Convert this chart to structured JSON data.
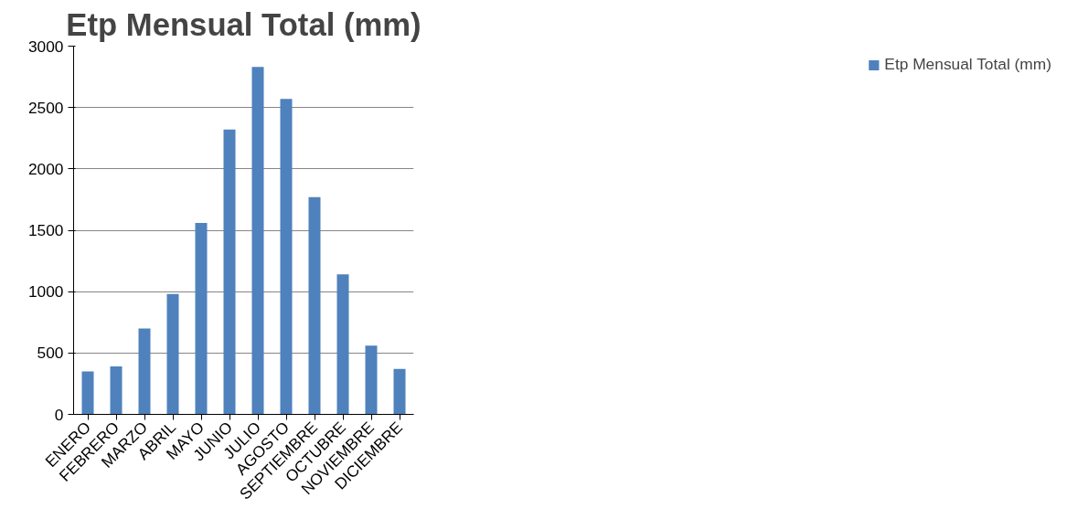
{
  "chart_data": {
    "type": "bar",
    "title": "Etp Mensual Total (mm)",
    "categories": [
      "ENERO",
      "FEBRERO",
      "MARZO",
      "ABRIL",
      "MAYO",
      "JUNIO",
      "JULIO",
      "AGOSTO",
      "SEPTIEMBRE",
      "OCTUBRE",
      "NOVIEMBRE",
      "DICIEMBRE"
    ],
    "series": [
      {
        "name": "Etp Mensual Total (mm)",
        "color": "#4f81bd",
        "values": [
          350,
          390,
          700,
          980,
          1560,
          2320,
          2830,
          2570,
          1770,
          1140,
          560,
          370
        ]
      }
    ],
    "ylim": [
      0,
      3000
    ],
    "yticks": [
      0,
      500,
      1000,
      1500,
      2000,
      2500,
      3000
    ],
    "grid": "y",
    "legend": "right"
  }
}
